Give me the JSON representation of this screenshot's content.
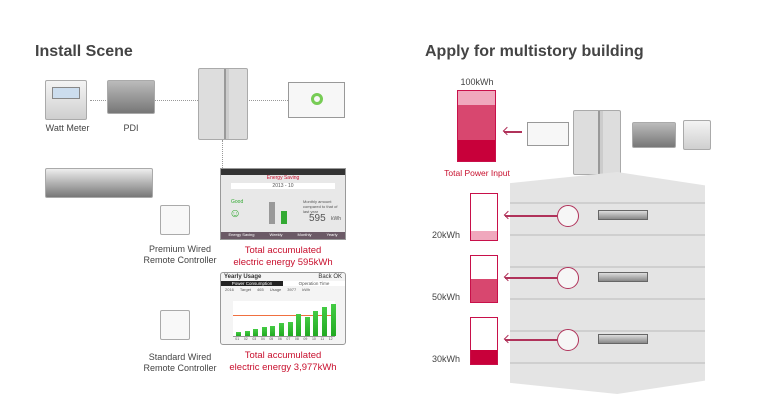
{
  "left": {
    "title": "Install Scene",
    "watt_meter": "Watt Meter",
    "pdi": "PDI",
    "premium_controller": [
      "Premium Wired",
      "Remote Controller"
    ],
    "standard_controller": [
      "Standard Wired",
      "Remote Controller"
    ],
    "energy_screen": {
      "header": "Energy Saving",
      "month": "2013 - 10",
      "status": "Good",
      "note": "Monthly amount compared to that of last year",
      "value": "595",
      "unit": "kWh",
      "tabs": [
        "Energy Saving",
        "Weekly",
        "Monthly",
        "Yearly"
      ]
    },
    "energy_caption": [
      "Total  accumulated",
      "electric energy 595kWh"
    ],
    "yearly_screen": {
      "title": "Yearly Usage",
      "back": "Back",
      "ok": "OK",
      "tabs": [
        "Power Consumption",
        "Operation Time"
      ],
      "year": "2016",
      "target_label": "Target",
      "target": "465",
      "usage_label": "Usage",
      "usage": "3977",
      "unit": "kWh",
      "months": [
        "01",
        "02",
        "03",
        "04",
        "05",
        "06",
        "07",
        "08",
        "09",
        "10",
        "11",
        "12"
      ]
    },
    "yearly_caption": [
      "Total  accumulated",
      "electric energy 3,977kWh"
    ]
  },
  "right": {
    "title": "Apply for multistory building",
    "total_value": "100kWh",
    "total_label": "Total Power Input",
    "floors": [
      {
        "value": "20kWh",
        "fill_pct": 20
      },
      {
        "value": "50kWh",
        "fill_pct": 50
      },
      {
        "value": "30kWh",
        "fill_pct": 30
      }
    ]
  },
  "colors": {
    "accent": "#c8102e",
    "light": "#f0a8bd",
    "mid": "#d8476f",
    "dark": "#c8003a"
  }
}
